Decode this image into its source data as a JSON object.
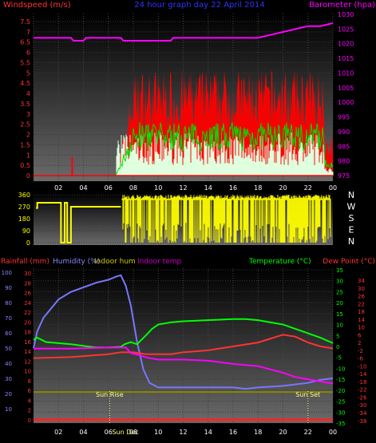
{
  "chart_data": [
    {
      "type": "bar",
      "title": "24 hour graph day 22 April 2014",
      "ylabel": "Windspeed (m/s)",
      "y2label": "Barometer (hpa)",
      "ylim": [
        0,
        8
      ],
      "y2lim": [
        975,
        1030
      ],
      "yticks": [
        "0",
        "0.5",
        "1",
        "1.5",
        "2",
        "2.5",
        "3",
        "3.5",
        "4",
        "4.5",
        "5",
        "5.5",
        "6",
        "6.5",
        "7",
        "7.5"
      ],
      "y2ticks": [
        "975",
        "980",
        "985",
        "990",
        "995",
        "1000",
        "1005",
        "1010",
        "1015",
        "1020",
        "1025",
        "1030"
      ],
      "xticks": [
        "02",
        "04",
        "06",
        "08",
        "10",
        "12",
        "14",
        "16",
        "18",
        "20",
        "22",
        "00"
      ],
      "colors": {
        "gust": "#ff0000",
        "average": "#00dd00",
        "wind_bars": "#ddffdd",
        "barometer": "#ff00ff"
      },
      "barometer": {
        "x": [
          0,
          3,
          3.2,
          4,
          4.2,
          7,
          7.2,
          11,
          11.2,
          18,
          19,
          20,
          21,
          22,
          23,
          24
        ],
        "y": [
          1022,
          1022,
          1021,
          1021,
          1022,
          1022,
          1021,
          1021,
          1022,
          1022,
          1023,
          1024,
          1025,
          1026,
          1026,
          1027
        ]
      },
      "gust_spike": {
        "x": 3.1,
        "y": 0.9
      },
      "gust_active": [
        6.6,
        24
      ],
      "gust_range": [
        2.2,
        5.2
      ],
      "avg_range": [
        1.2,
        2.6
      ]
    },
    {
      "type": "scatter",
      "ylim": [
        0,
        360
      ],
      "yticks": [
        "0",
        "90",
        "180",
        "270",
        "360"
      ],
      "compass": [
        "N",
        "W",
        "S",
        "E",
        "N"
      ],
      "color": "#ffff00",
      "segments": [
        {
          "x": [
            0.2,
            0.3,
            0.3,
            2.2,
            2.2,
            2.5,
            2.5,
            2.7,
            2.7,
            2.9
          ],
          "y": [
            260,
            260,
            300,
            300,
            0,
            0,
            300,
            300,
            0,
            0
          ]
        },
        {
          "x": [
            2.9,
            3.0,
            3.0,
            7.0
          ],
          "y": [
            0,
            0,
            270,
            270
          ]
        }
      ],
      "active": [
        7.1,
        24
      ]
    },
    {
      "type": "line",
      "y_axes": [
        {
          "label": "Rainfall (mm)",
          "color": "#ff3333",
          "ticks": [
            "0",
            "2",
            "4",
            "6",
            "8",
            "10",
            "12",
            "14",
            "16",
            "18",
            "20",
            "22",
            "24",
            "26",
            "28",
            "30"
          ]
        },
        {
          "label": "Humidity (%)",
          "color": "#8888ff",
          "ticks": [
            "10",
            "20",
            "30",
            "40",
            "50",
            "60",
            "70",
            "80",
            "90",
            "100"
          ]
        },
        {
          "label": "Indoor hum",
          "color": "#cccc00"
        },
        {
          "label": "Indoor temp",
          "color": "#cc00cc"
        },
        {
          "label": "Temperature (°C)",
          "color": "#00ff00",
          "ticks": [
            "-35",
            "-30",
            "-25",
            "-20",
            "-15",
            "-10",
            "-5",
            "0",
            "5",
            "10",
            "15",
            "20",
            "25",
            "30",
            "35"
          ]
        },
        {
          "label": "Dew Point (°C)",
          "color": "#ff3333",
          "ticks": [
            "-38",
            "-34",
            "-30",
            "-26",
            "-22",
            "-18",
            "-14",
            "-10",
            "-6",
            "-2",
            "2",
            "6",
            "10",
            "14",
            "18",
            "22",
            "26",
            "30",
            "34"
          ]
        }
      ],
      "annotations": [
        {
          "text": "Sun Rise",
          "x": 6.1
        },
        {
          "text": "Sun Set",
          "x": 22.0
        },
        {
          "text": "Sun Dec",
          "x": 6.3
        }
      ],
      "xticks": [
        "02",
        "04",
        "06",
        "08",
        "10",
        "12",
        "14",
        "16",
        "18",
        "20",
        "22",
        "00"
      ],
      "series": [
        {
          "name": "Humidity (%)",
          "color": "#7777ff",
          "axis": "humidity",
          "x": [
            0,
            0.3,
            0.8,
            1.3,
            2,
            3,
            4,
            5,
            6,
            6.6,
            7,
            7.4,
            7.8,
            8.3,
            8.8,
            9.3,
            10,
            12,
            16,
            17,
            18,
            20,
            22,
            23,
            24
          ],
          "y": [
            50,
            61,
            70,
            75,
            82,
            87,
            90,
            93,
            95,
            97,
            98,
            91,
            78,
            54,
            36,
            27,
            24,
            24,
            24,
            23,
            24,
            25,
            27,
            29,
            30
          ]
        },
        {
          "name": "Temperature (°C)",
          "color": "#00ff00",
          "axis": "temperature",
          "x": [
            0,
            0.3,
            1,
            3,
            5,
            6,
            7,
            7.3,
            7.8,
            8.3,
            9,
            9.5,
            10,
            11,
            12,
            14,
            16,
            17,
            18,
            19,
            20,
            21,
            22,
            23,
            24
          ],
          "y": [
            3,
            4,
            2,
            1,
            -0.5,
            -0.5,
            -0.2,
            1,
            2,
            1,
            5,
            8,
            10,
            11,
            11.5,
            12,
            12.5,
            12.5,
            12,
            11,
            10,
            8,
            6,
            4,
            1.5
          ]
        },
        {
          "name": "Dew Point (°C)",
          "color": "#ff3333",
          "axis": "dewpoint",
          "x": [
            0,
            3,
            6,
            7,
            7.5,
            8,
            9,
            11,
            12,
            14,
            16,
            18,
            19,
            20,
            21,
            22,
            23,
            24
          ],
          "y": [
            -6,
            -5.5,
            -4,
            -3,
            -3,
            -3,
            -4,
            -4,
            -3,
            -2,
            0,
            2,
            4,
            6,
            5,
            2,
            0,
            -1
          ]
        },
        {
          "name": "Indoor temp",
          "color": "#ff00ff",
          "axis": "temperature",
          "x": [
            0,
            3,
            6,
            7,
            7.4,
            7.8,
            8.5,
            9,
            10,
            12,
            14,
            16,
            18,
            20,
            21,
            22,
            23,
            24
          ],
          "y": [
            -1,
            -1,
            -0.5,
            -0.5,
            -0.5,
            -3,
            -4,
            -5,
            -6,
            -6,
            -6.5,
            -8,
            -9,
            -12,
            -14,
            -15,
            -16,
            -17
          ]
        },
        {
          "name": "Indoor hum",
          "color": "#888800",
          "axis": "humidity",
          "x": [
            0,
            24
          ],
          "y": [
            21,
            21
          ]
        },
        {
          "name": "Rainfall (mm)",
          "color": "#ff2222",
          "axis": "rainfall",
          "x": [
            0,
            24
          ],
          "y": [
            0,
            0
          ]
        }
      ]
    }
  ]
}
